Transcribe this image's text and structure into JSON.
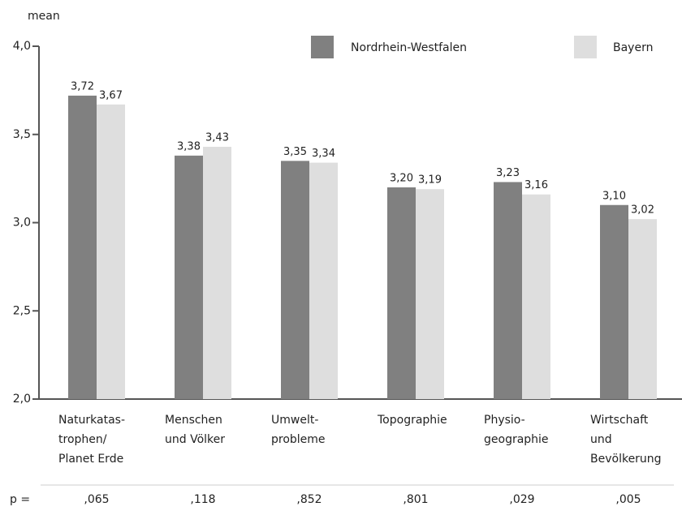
{
  "chart_data": {
    "type": "bar",
    "y_label": "mean",
    "categories": [
      [
        "Naturkatas-",
        "trophen/",
        "Planet Erde"
      ],
      [
        "Menschen",
        "und Völker"
      ],
      [
        "Umwelt-",
        "probleme"
      ],
      [
        "Topographie"
      ],
      [
        "Physio-",
        "geographie"
      ],
      [
        "Wirtschaft",
        "und",
        "Bevölkerung"
      ]
    ],
    "series": [
      {
        "name": "Nordrhein-Westfalen",
        "color": "#808080",
        "values": [
          3.72,
          3.38,
          3.35,
          3.2,
          3.23,
          3.1
        ],
        "value_labels": [
          "3,72",
          "3,38",
          "3,35",
          "3,20",
          "3,23",
          "3,10"
        ]
      },
      {
        "name": "Bayern",
        "color": "#dedede",
        "values": [
          3.67,
          3.43,
          3.34,
          3.19,
          3.16,
          3.02
        ],
        "value_labels": [
          "3,67",
          "3,43",
          "3,34",
          "3,19",
          "3,16",
          "3,02"
        ]
      }
    ],
    "ylim": [
      2.0,
      4.0
    ],
    "yticks": [
      {
        "value": 2.0,
        "label": "2,0"
      },
      {
        "value": 2.5,
        "label": "2,5"
      },
      {
        "value": 3.0,
        "label": "3,0"
      },
      {
        "value": 3.5,
        "label": "3,5"
      },
      {
        "value": 4.0,
        "label": "4,0"
      }
    ],
    "p_label": "p =",
    "p_values": [
      ",065",
      ",118",
      ",852",
      ",801",
      ",029",
      ",005"
    ]
  }
}
